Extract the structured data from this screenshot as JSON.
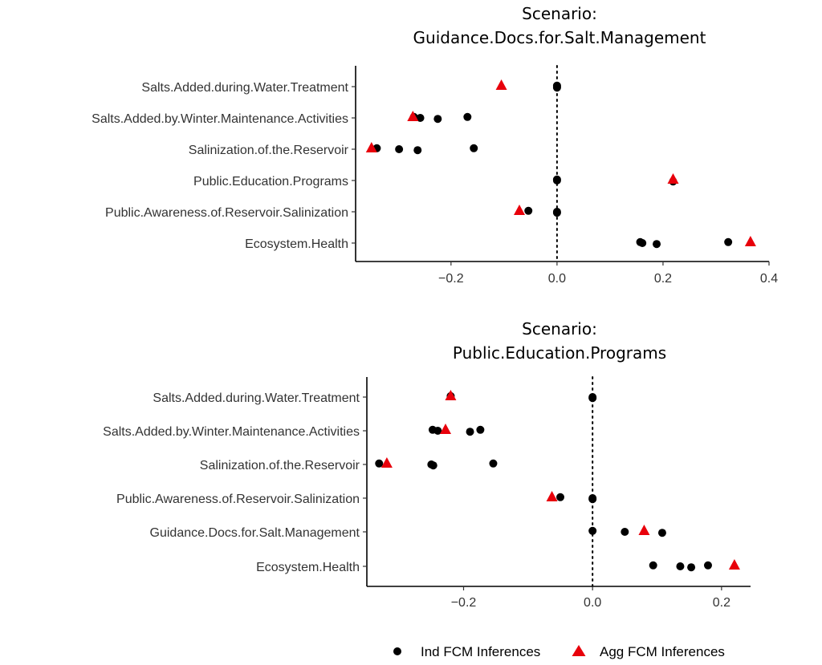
{
  "legend": {
    "ind_label": "Ind FCM Inferences",
    "agg_label": "Agg FCM Inferences",
    "ind_color": "#000000",
    "agg_color": "#e8000b"
  },
  "chart_data": [
    {
      "type": "scatter",
      "title_line1": "Scenario:",
      "title_line2": "Guidance.Docs.for.Salt.Management",
      "categories": [
        "Salts.Added.during.Water.Treatment",
        "Salts.Added.by.Winter.Maintenance.Activities",
        "Salinization.of.the.Reservoir",
        "Public.Education.Programs",
        "Public.Awareness.of.Reservoir.Salinization",
        "Ecosystem.Health"
      ],
      "xlim": [
        -0.38,
        0.4
      ],
      "xticks": [
        -0.2,
        0.0,
        0.2,
        0.4
      ],
      "xtick_labels": [
        "−0.2",
        "0.0",
        "0.2",
        "0.4"
      ],
      "reference_line": 0,
      "series": [
        {
          "name": "Ind FCM Inferences",
          "points": [
            {
              "category": "Salts.Added.during.Water.Treatment",
              "values": [
                0.0,
                0.0,
                0.0
              ]
            },
            {
              "category": "Salts.Added.by.Winter.Maintenance.Activities",
              "values": [
                -0.27,
                -0.258,
                -0.225,
                -0.169
              ]
            },
            {
              "category": "Salinization.of.the.Reservoir",
              "values": [
                -0.34,
                -0.298,
                -0.263,
                -0.157
              ]
            },
            {
              "category": "Public.Education.Programs",
              "values": [
                0.0,
                0.0,
                0.219
              ]
            },
            {
              "category": "Public.Awareness.of.Reservoir.Salinization",
              "values": [
                -0.054,
                0.0,
                0.0
              ]
            },
            {
              "category": "Ecosystem.Health",
              "values": [
                0.157,
                0.161,
                0.188,
                0.323
              ]
            }
          ]
        },
        {
          "name": "Agg FCM Inferences",
          "points": [
            {
              "category": "Salts.Added.during.Water.Treatment",
              "value": -0.105
            },
            {
              "category": "Salts.Added.by.Winter.Maintenance.Activities",
              "value": -0.272
            },
            {
              "category": "Salinization.of.the.Reservoir",
              "value": -0.35
            },
            {
              "category": "Public.Education.Programs",
              "value": 0.219
            },
            {
              "category": "Public.Awareness.of.Reservoir.Salinization",
              "value": -0.071
            },
            {
              "category": "Ecosystem.Health",
              "value": 0.365
            }
          ]
        }
      ]
    },
    {
      "type": "scatter",
      "title_line1": "Scenario:",
      "title_line2": "Public.Education.Programs",
      "categories": [
        "Salts.Added.during.Water.Treatment",
        "Salts.Added.by.Winter.Maintenance.Activities",
        "Salinization.of.the.Reservoir",
        "Public.Awareness.of.Reservoir.Salinization",
        "Guidance.Docs.for.Salt.Management",
        "Ecosystem.Health"
      ],
      "xlim": [
        -0.35,
        0.245
      ],
      "xticks": [
        -0.2,
        0.0,
        0.2
      ],
      "xtick_labels": [
        "−0.2",
        "0.0",
        "0.2"
      ],
      "reference_line": 0,
      "series": [
        {
          "name": "Ind FCM Inferences",
          "points": [
            {
              "category": "Salts.Added.during.Water.Treatment",
              "values": [
                -0.22,
                0.0,
                0.0
              ]
            },
            {
              "category": "Salts.Added.by.Winter.Maintenance.Activities",
              "values": [
                -0.248,
                -0.24,
                -0.19,
                -0.174
              ]
            },
            {
              "category": "Salinization.of.the.Reservoir",
              "values": [
                -0.331,
                -0.25,
                -0.247,
                -0.154
              ]
            },
            {
              "category": "Public.Awareness.of.Reservoir.Salinization",
              "values": [
                -0.05,
                0.0,
                0.0
              ]
            },
            {
              "category": "Guidance.Docs.for.Salt.Management",
              "values": [
                0.0,
                0.05,
                0.108
              ]
            },
            {
              "category": "Ecosystem.Health",
              "values": [
                0.094,
                0.136,
                0.153,
                0.179
              ]
            }
          ]
        },
        {
          "name": "Agg FCM Inferences",
          "points": [
            {
              "category": "Salts.Added.during.Water.Treatment",
              "value": -0.22
            },
            {
              "category": "Salts.Added.by.Winter.Maintenance.Activities",
              "value": -0.228
            },
            {
              "category": "Salinization.of.the.Reservoir",
              "value": -0.319
            },
            {
              "category": "Public.Awareness.of.Reservoir.Salinization",
              "value": -0.063
            },
            {
              "category": "Guidance.Docs.for.Salt.Management",
              "value": 0.08
            },
            {
              "category": "Ecosystem.Health",
              "value": 0.22
            }
          ]
        }
      ]
    }
  ]
}
